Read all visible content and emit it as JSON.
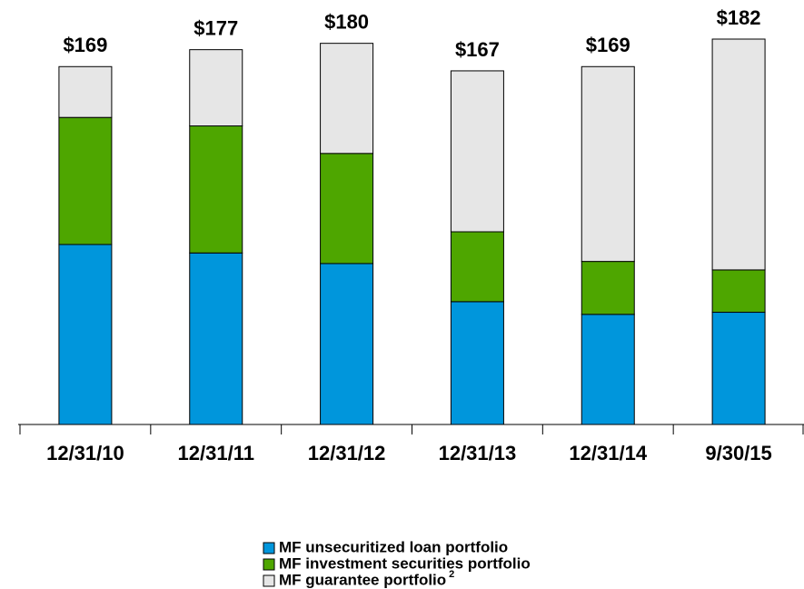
{
  "chart_data": {
    "type": "stacked_bar",
    "categories": [
      "12/31/10",
      "12/31/11",
      "12/31/12",
      "12/31/13",
      "12/31/14",
      "9/30/15"
    ],
    "series": [
      {
        "name": "MF unsecuritized loan portfolio",
        "color": "#0096dc",
        "values": [
          85,
          81,
          76,
          58,
          52,
          53
        ]
      },
      {
        "name": "MF investment securities portfolio",
        "color": "#4ea600",
        "values": [
          60,
          60,
          52,
          33,
          25,
          20
        ]
      },
      {
        "name": "MF guarantee portfolio",
        "footnote": "2",
        "color": "#e6e6e6",
        "values": [
          24,
          36,
          52,
          76,
          92,
          109
        ]
      }
    ],
    "totals": [
      169,
      177,
      180,
      167,
      169,
      182
    ],
    "total_labels": [
      "$169",
      "$177",
      "$180",
      "$167",
      "$169",
      "$182"
    ],
    "ylim": [
      0,
      182
    ]
  }
}
